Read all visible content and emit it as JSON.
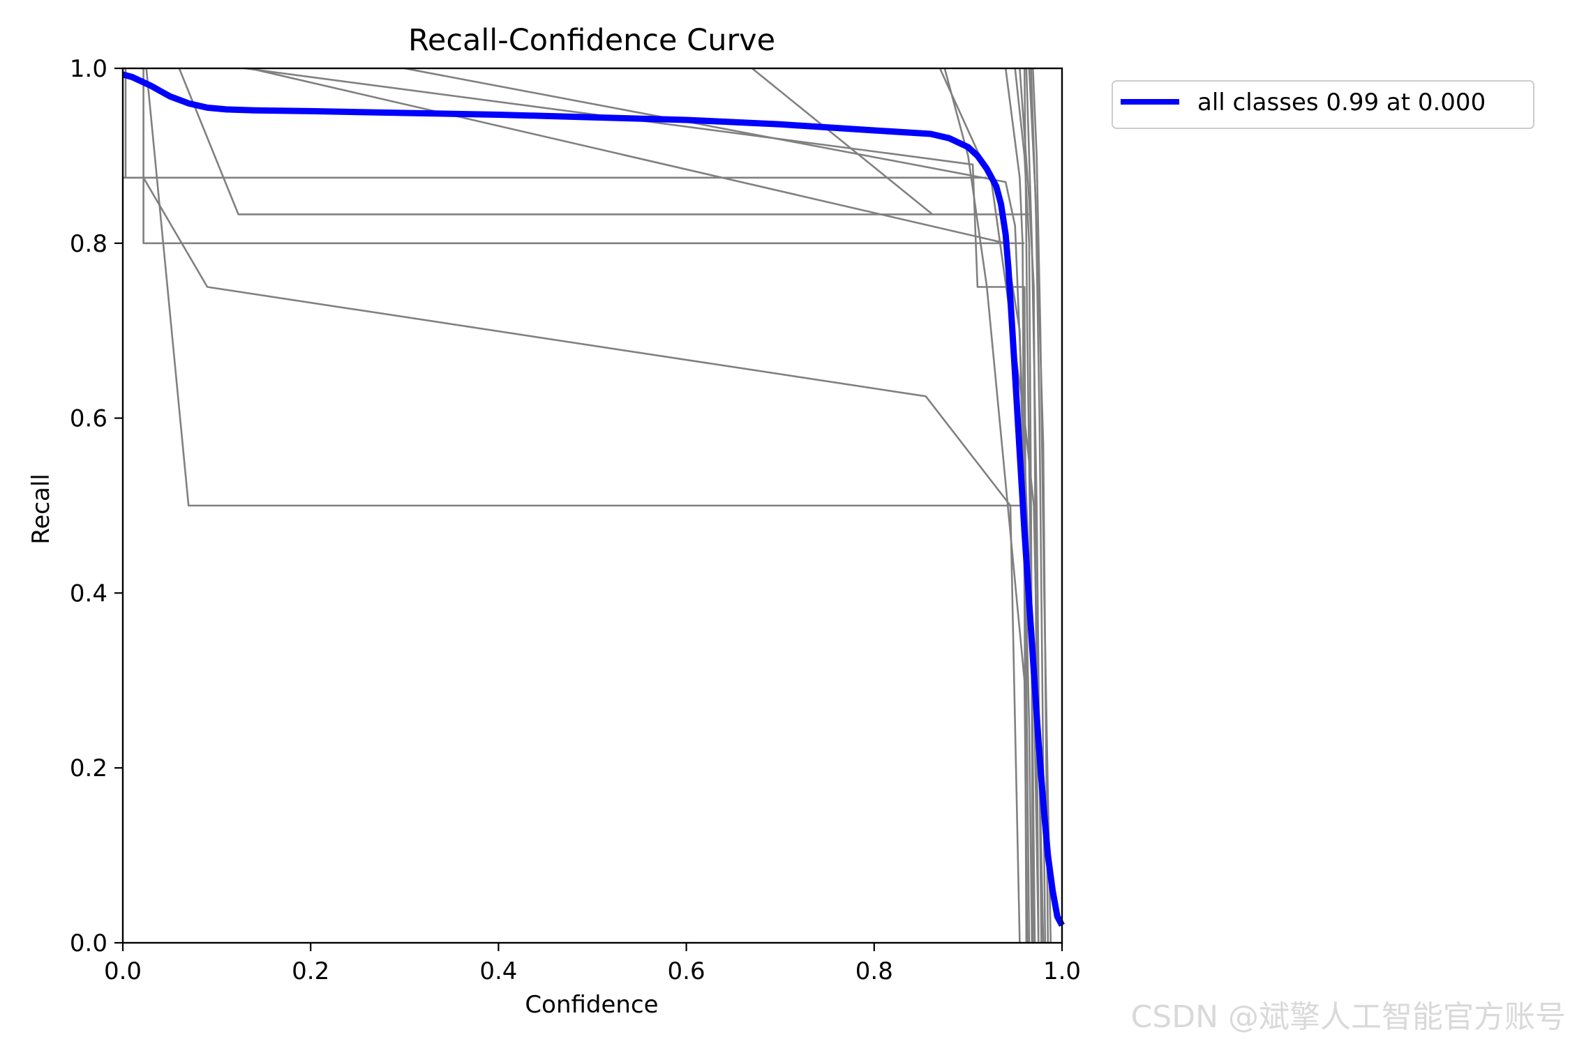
{
  "chart_data": {
    "type": "line",
    "title": "Recall-Confidence Curve",
    "xlabel": "Confidence",
    "ylabel": "Recall",
    "xlim": [
      0,
      1
    ],
    "ylim": [
      0,
      1
    ],
    "xticks": [
      "0.0",
      "0.2",
      "0.4",
      "0.6",
      "0.8",
      "1.0"
    ],
    "yticks": [
      "0.0",
      "0.2",
      "0.4",
      "0.6",
      "0.8",
      "1.0"
    ],
    "grid": false,
    "legend_position": "outside-top-right",
    "series": [
      {
        "name": "all classes 0.99 at 0.000",
        "color": "#0000ff",
        "emphasis": "bold",
        "x": [
          0.0,
          0.01,
          0.03,
          0.05,
          0.07,
          0.09,
          0.11,
          0.14,
          0.2,
          0.3,
          0.4,
          0.5,
          0.6,
          0.7,
          0.8,
          0.86,
          0.88,
          0.9,
          0.91,
          0.92,
          0.93,
          0.935,
          0.94,
          0.943,
          0.946,
          0.95,
          0.955,
          0.96,
          0.965,
          0.97,
          0.975,
          0.98,
          0.985,
          0.99,
          0.995,
          1.0
        ],
        "y": [
          0.993,
          0.99,
          0.98,
          0.968,
          0.96,
          0.955,
          0.953,
          0.952,
          0.951,
          0.949,
          0.947,
          0.944,
          0.941,
          0.936,
          0.929,
          0.925,
          0.92,
          0.91,
          0.9,
          0.885,
          0.865,
          0.845,
          0.81,
          0.77,
          0.72,
          0.65,
          0.56,
          0.47,
          0.39,
          0.31,
          0.23,
          0.16,
          0.1,
          0.06,
          0.03,
          0.02
        ]
      },
      {
        "color": "#808080",
        "x": [
          0.0,
          0.003,
          0.003,
          0.92
        ],
        "y": [
          1.0,
          1.0,
          0.875,
          0.875
        ]
      },
      {
        "color": "#808080",
        "x": [
          0.06,
          0.123,
          0.123,
          0.965
        ],
        "y": [
          1.0,
          0.833,
          0.833,
          0.833
        ]
      },
      {
        "color": "#808080",
        "x": [
          0.02,
          0.022,
          0.022,
          0.96
        ],
        "y": [
          1.0,
          1.0,
          0.8,
          0.8
        ]
      },
      {
        "color": "#808080",
        "x": [
          0.0,
          0.022,
          0.09,
          0.855,
          0.945,
          0.96
        ],
        "y": [
          0.875,
          0.875,
          0.75,
          0.625,
          0.5,
          0.5
        ]
      },
      {
        "color": "#808080",
        "x": [
          0.025,
          0.07,
          0.945,
          0.95,
          0.955
        ],
        "y": [
          1.0,
          0.5,
          0.5,
          0.25,
          0.0
        ]
      },
      {
        "color": "#808080",
        "x": [
          0.13,
          0.905,
          0.91,
          0.96,
          0.962,
          0.965
        ],
        "y": [
          1.0,
          0.89,
          0.75,
          0.75,
          0.3,
          0.0
        ]
      },
      {
        "color": "#808080",
        "x": [
          0.3,
          0.94,
          0.95,
          0.97,
          0.975
        ],
        "y": [
          1.0,
          0.87,
          0.82,
          0.3,
          0.0
        ]
      },
      {
        "color": "#808080",
        "x": [
          0.135,
          0.94,
          0.955,
          0.965,
          0.968
        ],
        "y": [
          1.0,
          0.8,
          0.7,
          0.25,
          0.0
        ]
      },
      {
        "color": "#808080",
        "x": [
          0.67,
          0.862
        ],
        "y": [
          1.0,
          0.833
        ]
      },
      {
        "color": "#808080",
        "x": [
          0.87,
          0.925,
          0.96,
          0.97,
          0.975,
          0.98
        ],
        "y": [
          1.0,
          0.87,
          0.6,
          0.5,
          0.25,
          0.0
        ]
      },
      {
        "color": "#808080",
        "x": [
          0.875,
          0.9,
          0.92,
          0.96,
          0.963
        ],
        "y": [
          1.0,
          0.9,
          0.75,
          0.3,
          0.0
        ]
      },
      {
        "color": "#808080",
        "x": [
          0.94,
          0.955,
          0.958,
          0.96,
          0.962
        ],
        "y": [
          1.0,
          0.875,
          0.8,
          0.4,
          0.0
        ]
      },
      {
        "color": "#808080",
        "x": [
          0.95,
          0.96,
          0.965,
          0.967,
          0.969
        ],
        "y": [
          1.0,
          0.9,
          0.8,
          0.5,
          0.0
        ]
      },
      {
        "color": "#808080",
        "x": [
          0.955,
          0.965,
          0.97,
          0.972,
          0.975
        ],
        "y": [
          1.0,
          0.85,
          0.75,
          0.4,
          0.0
        ]
      },
      {
        "color": "#808080",
        "x": [
          0.96,
          0.963,
          0.967,
          0.971
        ],
        "y": [
          1.0,
          0.7,
          0.4,
          0.0
        ]
      },
      {
        "color": "#808080",
        "x": [
          0.962,
          0.968,
          0.973,
          0.978
        ],
        "y": [
          1.0,
          0.8,
          0.5,
          0.0
        ]
      },
      {
        "color": "#808080",
        "x": [
          0.965,
          0.972,
          0.976,
          0.982
        ],
        "y": [
          1.0,
          0.85,
          0.6,
          0.0
        ]
      },
      {
        "color": "#808080",
        "x": [
          0.967,
          0.975,
          0.98,
          0.985
        ],
        "y": [
          1.0,
          0.75,
          0.57,
          0.0
        ]
      },
      {
        "color": "#808080",
        "x": [
          0.969,
          0.973,
          0.977,
          0.981,
          0.988
        ],
        "y": [
          1.0,
          0.9,
          0.7,
          0.4,
          0.0
        ]
      }
    ]
  },
  "watermark": "CSDN @斌擎人工智能官方账号"
}
